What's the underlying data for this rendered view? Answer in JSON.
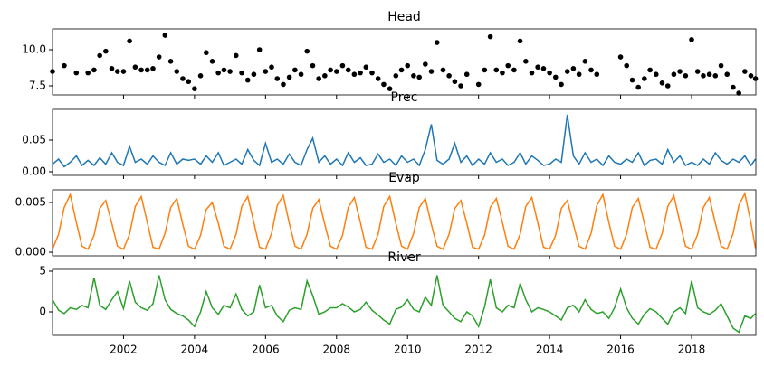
{
  "chart_data": {
    "type": "multi-panel",
    "xlim": [
      2000,
      2019.81
    ],
    "xticks": [
      2002,
      2004,
      2006,
      2008,
      2010,
      2012,
      2014,
      2016,
      2018
    ],
    "x": [
      2000,
      2000.17,
      2000.33,
      2000.5,
      2000.67,
      2000.83,
      2001,
      2001.17,
      2001.33,
      2001.5,
      2001.67,
      2001.83,
      2002,
      2002.17,
      2002.33,
      2002.5,
      2002.67,
      2002.83,
      2003,
      2003.17,
      2003.33,
      2003.5,
      2003.67,
      2003.83,
      2004,
      2004.17,
      2004.33,
      2004.5,
      2004.67,
      2004.83,
      2005,
      2005.17,
      2005.33,
      2005.5,
      2005.67,
      2005.83,
      2006,
      2006.17,
      2006.33,
      2006.5,
      2006.67,
      2006.83,
      2007,
      2007.17,
      2007.33,
      2007.5,
      2007.67,
      2007.83,
      2008,
      2008.17,
      2008.33,
      2008.5,
      2008.67,
      2008.83,
      2009,
      2009.17,
      2009.33,
      2009.5,
      2009.67,
      2009.83,
      2010,
      2010.17,
      2010.33,
      2010.5,
      2010.67,
      2010.83,
      2011,
      2011.17,
      2011.33,
      2011.5,
      2011.67,
      2011.83,
      2012,
      2012.17,
      2012.33,
      2012.5,
      2012.67,
      2012.83,
      2013,
      2013.17,
      2013.33,
      2013.5,
      2013.67,
      2013.83,
      2014,
      2014.17,
      2014.33,
      2014.5,
      2014.67,
      2014.83,
      2015,
      2015.17,
      2015.33,
      2015.5,
      2015.67,
      2015.83,
      2016,
      2016.17,
      2016.33,
      2016.5,
      2016.67,
      2016.83,
      2017,
      2017.17,
      2017.33,
      2017.5,
      2017.67,
      2017.83,
      2018,
      2018.17,
      2018.33,
      2018.5,
      2018.67,
      2018.83,
      2019,
      2019.17,
      2019.33,
      2019.5,
      2019.67,
      2019.8
    ],
    "panels": [
      {
        "type": "scatter",
        "title": "Head",
        "color": "#000000",
        "ylim": [
          6.875,
          11.44
        ],
        "yticks": [
          7.5,
          {
            "value": 10,
            "label": "10.0"
          }
        ],
        "values": [
          8.5,
          null,
          8.9,
          null,
          8.4,
          null,
          8.4,
          8.6,
          9.6,
          9.9,
          8.7,
          8.5,
          8.5,
          10.6,
          8.8,
          8.6,
          8.6,
          8.7,
          9.5,
          11.0,
          9.2,
          8.5,
          8.0,
          7.8,
          7.3,
          8.2,
          9.8,
          9.2,
          8.4,
          8.6,
          8.5,
          9.6,
          8.4,
          7.9,
          8.3,
          10.0,
          8.5,
          8.8,
          8.0,
          7.6,
          8.1,
          8.6,
          8.3,
          9.9,
          8.9,
          8.0,
          8.2,
          8.6,
          8.5,
          8.9,
          8.6,
          8.3,
          8.4,
          8.8,
          8.4,
          8.0,
          7.6,
          7.3,
          8.2,
          8.6,
          8.9,
          8.2,
          8.1,
          9.0,
          8.5,
          10.5,
          8.6,
          8.2,
          7.8,
          7.5,
          8.3,
          null,
          7.6,
          8.6,
          10.9,
          8.6,
          8.4,
          8.9,
          8.6,
          10.6,
          9.2,
          8.4,
          8.8,
          8.7,
          8.4,
          8.1,
          7.6,
          8.5,
          8.7,
          8.3,
          9.2,
          8.6,
          8.3,
          null,
          null,
          null,
          9.5,
          8.9,
          7.9,
          7.4,
          8.0,
          8.6,
          8.3,
          7.7,
          7.5,
          8.3,
          8.5,
          8.2,
          10.7,
          8.5,
          8.2,
          8.3,
          8.2,
          8.9,
          8.3,
          7.4,
          7.0,
          8.5,
          8.2,
          8.0
        ]
      },
      {
        "type": "line",
        "title": "Prec",
        "color": "#1f77b4",
        "ylim": [
          -0.0057,
          0.0986
        ],
        "yticks": [
          {
            "value": 0,
            "label": "0.00"
          },
          {
            "value": 0.05,
            "label": "0.05"
          }
        ],
        "values": [
          0.012,
          0.02,
          0.008,
          0.015,
          0.025,
          0.01,
          0.018,
          0.01,
          0.022,
          0.012,
          0.03,
          0.015,
          0.01,
          0.04,
          0.015,
          0.02,
          0.012,
          0.025,
          0.015,
          0.01,
          0.03,
          0.012,
          0.02,
          0.018,
          0.02,
          0.012,
          0.025,
          0.015,
          0.03,
          0.01,
          0.015,
          0.02,
          0.012,
          0.035,
          0.018,
          0.01,
          0.045,
          0.015,
          0.02,
          0.012,
          0.028,
          0.015,
          0.01,
          0.035,
          0.053,
          0.015,
          0.025,
          0.012,
          0.02,
          0.01,
          0.03,
          0.015,
          0.022,
          0.01,
          0.012,
          0.028,
          0.015,
          0.02,
          0.01,
          0.025,
          0.015,
          0.02,
          0.01,
          0.035,
          0.075,
          0.018,
          0.012,
          0.02,
          0.045,
          0.015,
          0.025,
          0.01,
          0.02,
          0.012,
          0.03,
          0.015,
          0.02,
          0.01,
          0.015,
          0.03,
          0.012,
          0.025,
          0.018,
          0.01,
          0.012,
          0.02,
          0.015,
          0.09,
          0.025,
          0.012,
          0.03,
          0.015,
          0.02,
          0.01,
          0.025,
          0.015,
          0.012,
          0.02,
          0.015,
          0.03,
          0.01,
          0.018,
          0.02,
          0.012,
          0.035,
          0.015,
          0.025,
          0.01,
          0.015,
          0.01,
          0.02,
          0.012,
          0.03,
          0.018,
          0.012,
          0.02,
          0.015,
          0.025,
          0.01,
          0.02
        ]
      },
      {
        "type": "line",
        "title": "Evap",
        "color": "#ff7f0e",
        "ylim": [
          -0.00036,
          0.00627
        ],
        "yticks": [
          {
            "value": 0,
            "label": "0.000"
          },
          {
            "value": 0.005,
            "label": "0.005"
          }
        ],
        "values": [
          0.0003,
          0.0018,
          0.0045,
          0.0058,
          0.003,
          0.0006,
          0.0003,
          0.0017,
          0.0044,
          0.0052,
          0.0029,
          0.0006,
          0.0003,
          0.0018,
          0.0046,
          0.0056,
          0.003,
          0.0005,
          0.0003,
          0.0019,
          0.0045,
          0.0054,
          0.0028,
          0.0006,
          0.0003,
          0.0017,
          0.0043,
          0.005,
          0.0029,
          0.0006,
          0.0003,
          0.0018,
          0.0046,
          0.0056,
          0.003,
          0.0005,
          0.0003,
          0.0019,
          0.0047,
          0.0057,
          0.0029,
          0.0006,
          0.0003,
          0.0018,
          0.0044,
          0.0053,
          0.0028,
          0.0006,
          0.0003,
          0.0017,
          0.0045,
          0.0055,
          0.003,
          0.0005,
          0.0003,
          0.0018,
          0.0046,
          0.0056,
          0.0029,
          0.0006,
          0.0003,
          0.0019,
          0.0045,
          0.0054,
          0.0028,
          0.0006,
          0.0003,
          0.0018,
          0.0044,
          0.0052,
          0.0029,
          0.0005,
          0.0003,
          0.0017,
          0.0045,
          0.0054,
          0.003,
          0.0006,
          0.0003,
          0.0018,
          0.0046,
          0.0055,
          0.0029,
          0.0005,
          0.0003,
          0.0017,
          0.0044,
          0.0052,
          0.0028,
          0.0006,
          0.0003,
          0.0019,
          0.0047,
          0.0058,
          0.003,
          0.0006,
          0.0003,
          0.0018,
          0.0045,
          0.0054,
          0.0029,
          0.0005,
          0.0003,
          0.0019,
          0.0046,
          0.0057,
          0.003,
          0.0006,
          0.0003,
          0.0018,
          0.0045,
          0.0055,
          0.0029,
          0.0006,
          0.0003,
          0.0019,
          0.0047,
          0.0059,
          0.003,
          0.0004
        ]
      },
      {
        "type": "line",
        "title": "River",
        "color": "#2ca02c",
        "ylim": [
          -2.89,
          5.22
        ],
        "yticks": [
          0,
          5
        ],
        "values": [
          1.5,
          0.2,
          -0.2,
          0.5,
          0.3,
          0.8,
          0.5,
          4.2,
          0.8,
          0.3,
          1.5,
          2.5,
          0.4,
          3.8,
          1.2,
          0.5,
          0.2,
          1.0,
          4.5,
          1.5,
          0.3,
          -0.2,
          -0.5,
          -1.0,
          -1.8,
          0.0,
          2.5,
          0.5,
          -0.3,
          0.8,
          0.5,
          2.2,
          0.3,
          -0.5,
          0.0,
          3.3,
          0.5,
          0.8,
          -0.5,
          -1.2,
          0.2,
          0.5,
          0.3,
          3.8,
          2.0,
          -0.3,
          0.0,
          0.5,
          0.5,
          1.0,
          0.6,
          0.0,
          0.3,
          1.2,
          0.2,
          -0.4,
          -1.0,
          -1.5,
          0.3,
          0.6,
          1.5,
          0.3,
          0.0,
          1.8,
          0.8,
          4.5,
          0.8,
          0.0,
          -0.8,
          -1.2,
          0.0,
          -0.5,
          -1.8,
          0.6,
          4.0,
          0.5,
          0.0,
          0.8,
          0.5,
          3.5,
          1.5,
          0.0,
          0.5,
          0.3,
          0.0,
          -0.5,
          -1.0,
          0.5,
          0.8,
          0.0,
          1.5,
          0.3,
          -0.2,
          0.0,
          -0.8,
          0.5,
          2.8,
          0.5,
          -0.8,
          -1.5,
          -0.3,
          0.4,
          0.0,
          -0.8,
          -1.5,
          0.0,
          0.5,
          -0.2,
          3.8,
          0.5,
          0.0,
          -0.3,
          0.2,
          1.0,
          -0.5,
          -2.0,
          -2.5,
          -0.5,
          -0.8,
          -0.2
        ]
      }
    ]
  }
}
